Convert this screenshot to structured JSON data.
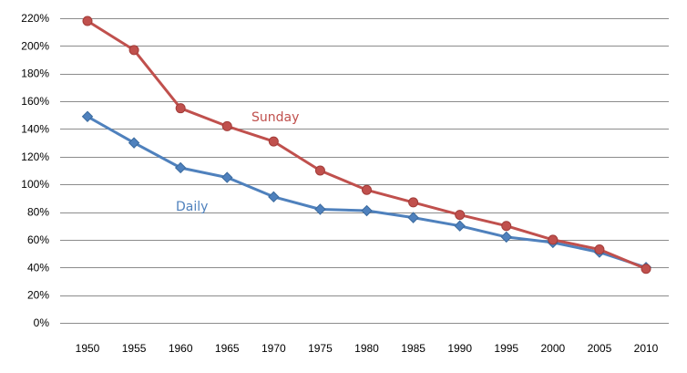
{
  "chart_data": {
    "type": "line",
    "x": [
      1950,
      1955,
      1960,
      1965,
      1970,
      1975,
      1980,
      1985,
      1990,
      1995,
      2000,
      2005,
      2010
    ],
    "x_tick_labels": [
      "1950",
      "1955",
      "1960",
      "1965",
      "1970",
      "1975",
      "1980",
      "1985",
      "1990",
      "1995",
      "2000",
      "2005",
      "2010"
    ],
    "y_tick_values": [
      0,
      20,
      40,
      60,
      80,
      100,
      120,
      140,
      160,
      180,
      200,
      220
    ],
    "y_tick_labels": [
      "0%",
      "20%",
      "40%",
      "60%",
      "80%",
      "100%",
      "120%",
      "140%",
      "160%",
      "180%",
      "200%",
      "220%"
    ],
    "ylim": [
      0,
      220
    ],
    "y_unit": "%",
    "grid": "horizontal",
    "legend": "none",
    "series": [
      {
        "name": "Sunday",
        "color": "#c0504d",
        "marker": "circle",
        "values": [
          218,
          197,
          155,
          142,
          131,
          110,
          96,
          87,
          78,
          70,
          60,
          53,
          39
        ]
      },
      {
        "name": "Daily",
        "color": "#4f81bd",
        "marker": "diamond",
        "values": [
          149,
          130,
          112,
          105,
          91,
          82,
          81,
          76,
          70,
          62,
          58,
          51,
          40
        ]
      }
    ]
  }
}
